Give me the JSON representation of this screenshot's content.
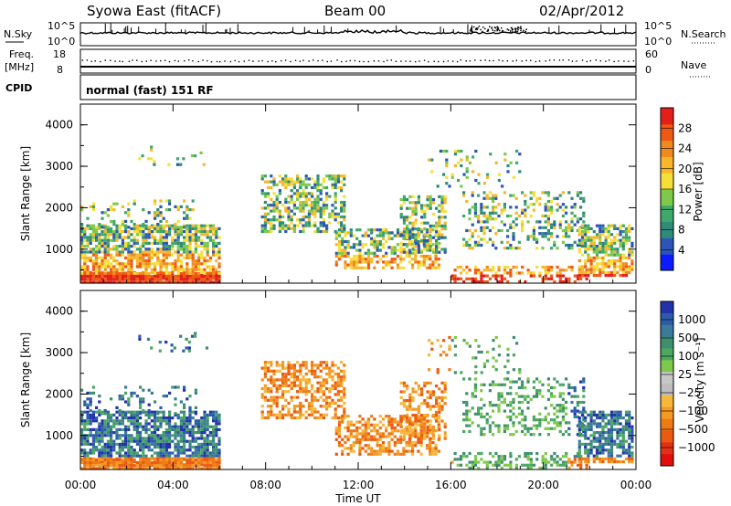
{
  "header": {
    "station": "Syowa East (fitACF)",
    "beam": "Beam 00",
    "date": "02/Apr/2012"
  },
  "top_panels": {
    "nsky_label": "N.Sky",
    "nsky_ticks": [
      "10^5",
      "10^0"
    ],
    "nsearch_label": "N.Search",
    "nsearch_ticks": [
      "10^5",
      "10^0"
    ],
    "freq_label_1": "Freq.",
    "freq_label_2": "[MHz]",
    "freq_ticks": [
      "18",
      "8"
    ],
    "nave_label": "Nave",
    "nave_ticks": [
      "60",
      "0"
    ],
    "cpid_label": "CPID",
    "cpid_value": "normal (fast) 151 RF"
  },
  "chart_data": [
    {
      "type": "heatmap",
      "name": "power",
      "ylabel": "Slant Range [km]",
      "yticks": [
        "1000",
        "2000",
        "3000",
        "4000"
      ],
      "ylim": [
        180,
        4500
      ],
      "xlim": [
        0,
        24
      ],
      "colorbar": {
        "label": "Power [dB]",
        "ticks": [
          "4",
          "8",
          "12",
          "16",
          "20",
          "24",
          "28"
        ],
        "colors": [
          "#0a1bff",
          "#2c55b7",
          "#2f8a7a",
          "#3fa76a",
          "#7ec84a",
          "#f5e03a",
          "#f8b62a",
          "#f18a1e",
          "#ee5a14",
          "#e41f1a"
        ]
      }
    },
    {
      "type": "heatmap",
      "name": "velocity",
      "ylabel": "Slant Range [km]",
      "yticks": [
        "1000",
        "2000",
        "3000",
        "4000"
      ],
      "ylim": [
        180,
        4500
      ],
      "xlim": [
        0,
        24
      ],
      "xlabel": "Time UT",
      "xticks": [
        "00:00",
        "04:00",
        "08:00",
        "12:00",
        "16:00",
        "20:00",
        "00:00"
      ],
      "colorbar": {
        "label": "Velocity [m s⁻¹]",
        "ticks": [
          "1000",
          "500",
          "100",
          "25",
          "−25",
          "−100",
          "−500",
          "−1000"
        ],
        "colors": [
          "#2233aa",
          "#2c5ba9",
          "#3a7a9b",
          "#3f8e6e",
          "#4aa861",
          "#7ec84a",
          "#c8c8c8",
          "#bdbdbd",
          "#f6b83a",
          "#f39a25",
          "#ee7a16",
          "#ea5a12",
          "#e43015",
          "#e00e0e"
        ]
      }
    }
  ]
}
